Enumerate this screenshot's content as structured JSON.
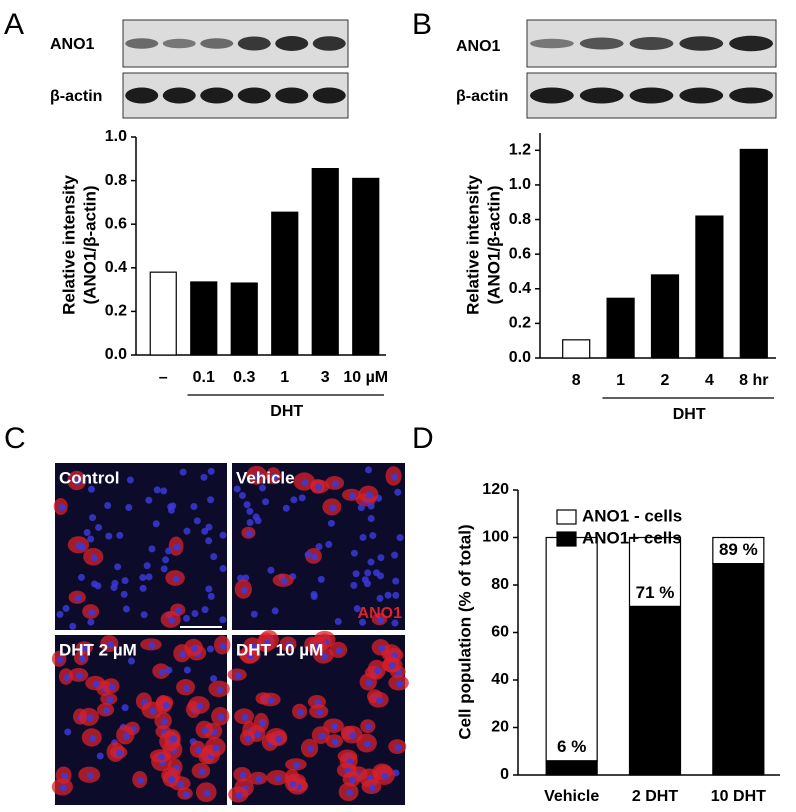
{
  "panel_letters": [
    "A",
    "B",
    "C",
    "D"
  ],
  "blot_labels": [
    [
      "ANO1",
      "β-actin"
    ],
    [
      "ANO1",
      "β-actin"
    ]
  ],
  "micrographs": {
    "labels": [
      "Control",
      "Vehicle",
      "DHT 2 µM",
      "DHT 10 µM"
    ],
    "stain": "ANO1"
  },
  "chart_data": [
    {
      "type": "bar",
      "ylabel": [
        "Relative intensity",
        "(ANO1/β-actin)"
      ],
      "categories": [
        "–",
        "0.1",
        "0.3",
        "1",
        "3",
        "10 µM"
      ],
      "values": [
        0.38,
        0.335,
        0.33,
        0.655,
        0.855,
        0.81
      ],
      "colors": [
        "#ffffff",
        "#000000",
        "#000000",
        "#000000",
        "#000000",
        "#000000"
      ],
      "group_label": "DHT",
      "ylim": [
        0,
        1.0
      ],
      "yticks": [
        {
          "value": 0,
          "label": "0.0"
        },
        0.2,
        0.4,
        0.6,
        0.8,
        {
          "value": 1,
          "label": "1.0"
        }
      ]
    },
    {
      "type": "bar",
      "ylabel": [
        "Relative intensity",
        "(ANO1/β-actin)"
      ],
      "categories": [
        "8",
        "1",
        "2",
        "4",
        "8 hr"
      ],
      "values": [
        0.105,
        0.345,
        0.48,
        0.82,
        1.205
      ],
      "colors": [
        "#ffffff",
        "#000000",
        "#000000",
        "#000000",
        "#000000"
      ],
      "group_label": "DHT",
      "ylim": [
        0,
        1.3
      ],
      "yticks": [
        {
          "value": 0,
          "label": "0.0"
        },
        0.2,
        0.4,
        0.6,
        0.8,
        {
          "value": 1,
          "label": "1.0"
        },
        1.2
      ]
    },
    {
      "type": "stacked_bar",
      "ylabel": "Cell population (% of total)",
      "categories": [
        "Vehicle",
        "2 DHT",
        "10 DHT"
      ],
      "series": [
        {
          "name": "ANO1+ cells",
          "color": "#000000",
          "values": [
            6,
            71,
            89
          ],
          "value_labels": [
            "6 %",
            "71 %",
            "89 %"
          ]
        },
        {
          "name": "ANO1 - cells",
          "color": "#ffffff",
          "values": [
            94,
            29,
            11
          ]
        }
      ],
      "ylim": [
        0,
        120
      ],
      "yticks": [
        0,
        20,
        40,
        60,
        80,
        100,
        120
      ]
    }
  ]
}
